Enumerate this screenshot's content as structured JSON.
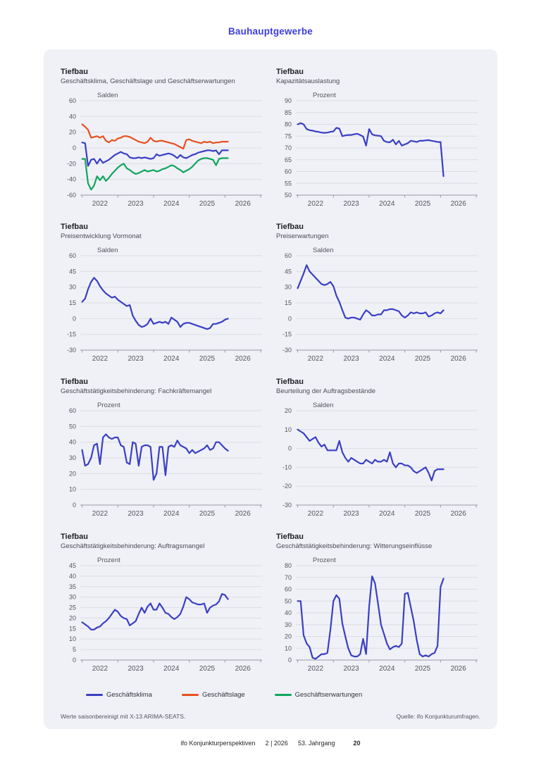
{
  "page": {
    "title": "Bauhauptgewerbe"
  },
  "styles": {
    "accent": "#3d3ddb",
    "card_bg": "#f0f1f7",
    "grid": "#dcdde3",
    "axis": "#9a9aa3",
    "tick_text": "#55555c",
    "line_blue": "#3b3fc4",
    "line_orange": "#e8501e",
    "line_green": "#12a55e"
  },
  "legend": {
    "items": [
      {
        "label": "Geschäftsklima",
        "color": "#3b3fc4"
      },
      {
        "label": "Geschäftslage",
        "color": "#e8501e"
      },
      {
        "label": "Geschäftserwartungen",
        "color": "#12a55e"
      }
    ]
  },
  "card": {
    "footnote_left": "Werte saisonbereinigt mit X-13 ARIMA-SEATS.",
    "footnote_right": "Quelle: ifo Konjunkturumfragen."
  },
  "footer": {
    "publication": "ifo Konjunkturperspektiven",
    "issue": "2 | 2026",
    "volume": "53. Jahrgang",
    "page_number": "20"
  },
  "chart_data": [
    {
      "type": "line",
      "title": "Tiefbau",
      "subtitle": "Geschäftsklima, Geschäftslage und Geschäftserwartungen",
      "unit": "Salden",
      "ymin": -60,
      "ymax": 60,
      "ystep": 20,
      "x_tick_labels": [
        "2022",
        "2023",
        "2024",
        "2025",
        "2026"
      ],
      "series": [
        {
          "name": "Geschäftsklima",
          "color": "#3b3fc4",
          "values": [
            7,
            6,
            -23,
            -15,
            -14,
            -20,
            -14,
            -19,
            -17,
            -15,
            -12,
            -9,
            -7,
            -5,
            -7,
            -8,
            -12,
            -13,
            -13,
            -12,
            -13,
            -12,
            -13,
            -14,
            -13,
            -8,
            -10,
            -9,
            -8,
            -7,
            -8,
            -10,
            -13,
            -9,
            -12,
            -13,
            -11,
            -9,
            -8,
            -6,
            -5,
            -4,
            -3,
            -3,
            -4,
            -3,
            -8,
            -3,
            -3,
            -3
          ]
        },
        {
          "name": "Geschäftslage",
          "color": "#e8501e",
          "values": [
            30,
            27,
            23,
            13,
            14,
            15,
            13,
            15,
            9,
            7,
            10,
            9,
            12,
            13,
            15,
            15,
            14,
            12,
            10,
            8,
            7,
            6,
            8,
            13,
            9,
            8,
            9,
            9,
            8,
            7,
            6,
            5,
            3,
            1,
            -1,
            10,
            11,
            9,
            8,
            7,
            6,
            8,
            7,
            8,
            6,
            7,
            7,
            8,
            8,
            8
          ]
        },
        {
          "name": "Geschäftserwartungen",
          "color": "#12a55e",
          "values": [
            -14,
            -14,
            -45,
            -53,
            -48,
            -36,
            -41,
            -36,
            -42,
            -38,
            -33,
            -29,
            -25,
            -22,
            -20,
            -26,
            -28,
            -31,
            -33,
            -32,
            -30,
            -28,
            -30,
            -29,
            -28,
            -30,
            -29,
            -27,
            -26,
            -24,
            -22,
            -23,
            -26,
            -28,
            -31,
            -29,
            -27,
            -24,
            -20,
            -16,
            -14,
            -13,
            -13,
            -14,
            -15,
            -22,
            -14,
            -13,
            -13,
            -13
          ]
        }
      ]
    },
    {
      "type": "line",
      "title": "Tiefbau",
      "subtitle": "Kapazitätsauslastung",
      "unit": "Prozent",
      "ymin": 50,
      "ymax": 90,
      "ystep": 5,
      "x_tick_labels": [
        "2022",
        "2023",
        "2024",
        "2025",
        "2026"
      ],
      "series": [
        {
          "name": "Kapazitätsauslastung",
          "color": "#3b3fc4",
          "values": [
            80,
            80.5,
            80,
            78,
            77.5,
            77.3,
            77,
            76.8,
            76.5,
            76.4,
            76.5,
            76.8,
            77,
            78.5,
            78.2,
            75,
            75.3,
            75.5,
            75.5,
            75.8,
            76,
            75.5,
            74.8,
            71,
            78,
            75.8,
            75.3,
            75.2,
            75,
            73,
            72.5,
            72.4,
            73.5,
            71.5,
            73,
            71,
            71.5,
            72,
            73,
            72.8,
            72.5,
            73,
            73,
            73.2,
            73.3,
            73,
            72.8,
            72.5,
            72.5,
            58
          ]
        }
      ]
    },
    {
      "type": "line",
      "title": "Tiefbau",
      "subtitle": "Preisentwicklung Vormonat",
      "unit": "Salden",
      "ymin": -30,
      "ymax": 60,
      "ystep": 15,
      "x_tick_labels": [
        "2022",
        "2023",
        "2024",
        "2025",
        "2026"
      ],
      "series": [
        {
          "name": "Preisentwicklung Vormonat",
          "color": "#3b3fc4",
          "values": [
            16,
            19,
            28,
            35,
            39,
            36,
            31,
            27,
            24,
            22,
            20,
            21,
            18,
            16,
            14,
            12,
            13,
            3,
            -2,
            -6,
            -8,
            -7,
            -5,
            0,
            -5,
            -4,
            -3,
            -4,
            -3,
            -5,
            1,
            -1,
            -3,
            -8,
            -5,
            -4,
            -4,
            -5,
            -6,
            -7,
            -8,
            -9,
            -10,
            -9,
            -5,
            -5,
            -4,
            -3,
            -1,
            0
          ]
        }
      ]
    },
    {
      "type": "line",
      "title": "Tiefbau",
      "subtitle": "Preiserwartungen",
      "unit": "Salden",
      "ymin": -30,
      "ymax": 60,
      "ystep": 15,
      "x_tick_labels": [
        "2022",
        "2023",
        "2024",
        "2025",
        "2026"
      ],
      "series": [
        {
          "name": "Preiserwartungen",
          "color": "#3b3fc4",
          "values": [
            29,
            36,
            43,
            51,
            45,
            42,
            39,
            36,
            33,
            32,
            33,
            35,
            31,
            22,
            16,
            8,
            1,
            0,
            1,
            1,
            0,
            -1,
            4,
            8,
            6,
            3,
            3,
            4,
            4,
            8,
            8,
            9,
            9,
            8,
            7,
            3,
            1,
            3,
            6,
            5,
            6,
            5,
            5,
            6,
            2,
            3,
            5,
            6,
            5,
            8
          ]
        }
      ]
    },
    {
      "type": "line",
      "title": "Tiefbau",
      "subtitle": "Geschäftstätigkeitsbehinderung: Fachkräftemangel",
      "unit": "Prozent",
      "ymin": 0,
      "ymax": 60,
      "ystep": 10,
      "x_tick_labels": [
        "2022",
        "2023",
        "2024",
        "2025",
        "2026"
      ],
      "series": [
        {
          "name": "Fachkräftemangel",
          "color": "#3b3fc4",
          "values": [
            35,
            25,
            26,
            30,
            38,
            39,
            26,
            43,
            45,
            43,
            42,
            43,
            43,
            38,
            37,
            27,
            26,
            40,
            39,
            25,
            37,
            38,
            38,
            37,
            16,
            20,
            37,
            37,
            19,
            37,
            38,
            37,
            41,
            38,
            37,
            36,
            33,
            35,
            33,
            34,
            35,
            36,
            38,
            35,
            36,
            40,
            40,
            38,
            36,
            34.5
          ]
        }
      ]
    },
    {
      "type": "line",
      "title": "Tiefbau",
      "subtitle": "Beurteilung der Auftragsbestände",
      "unit": "Salden",
      "ymin": -30,
      "ymax": 20,
      "ystep": 10,
      "x_tick_labels": [
        "2022",
        "2023",
        "2024",
        "2025",
        "2026"
      ],
      "series": [
        {
          "name": "Auftragsbestände",
          "color": "#3b3fc4",
          "values": [
            10,
            9,
            8,
            6,
            4,
            5,
            6,
            3,
            1,
            2,
            -1,
            -1,
            -1,
            -1,
            4,
            -2,
            -5,
            -7,
            -5,
            -6,
            -7,
            -8,
            -8,
            -6,
            -7,
            -8,
            -6,
            -7,
            -7,
            -6,
            -7,
            -2,
            -8,
            -10,
            -8,
            -8,
            -9,
            -9,
            -10,
            -12,
            -13,
            -12,
            -11,
            -10,
            -13,
            -17,
            -12,
            -11,
            -11,
            -11
          ]
        }
      ]
    },
    {
      "type": "line",
      "title": "Tiefbau",
      "subtitle": "Geschäftstätigkeitsbehinderung: Auftragsmangel",
      "unit": "Prozent",
      "ymin": 0,
      "ymax": 45,
      "ystep": 5,
      "x_tick_labels": [
        "2022",
        "2023",
        "2024",
        "2025",
        "2026"
      ],
      "series": [
        {
          "name": "Auftragsmangel",
          "color": "#3b3fc4",
          "values": [
            18,
            17,
            16,
            14.5,
            14.5,
            15.5,
            16,
            17.5,
            18.5,
            20,
            22,
            24,
            23,
            21,
            20,
            19.5,
            16.5,
            17.5,
            18.5,
            22,
            25,
            22.5,
            25.5,
            27,
            24,
            24,
            27,
            25,
            22.5,
            22,
            20.5,
            19.5,
            20.5,
            22,
            25.5,
            30,
            29,
            27.5,
            27,
            26.5,
            26.5,
            27,
            22.5,
            25,
            26,
            26.5,
            28,
            31.5,
            31,
            29
          ]
        }
      ]
    },
    {
      "type": "line",
      "title": "Tiefbau",
      "subtitle": "Geschäftstätigkeitsbehinderung: Witterungseinflüsse",
      "unit": "Prozent",
      "ymin": 0,
      "ymax": 80,
      "ystep": 10,
      "x_tick_labels": [
        "2022",
        "2023",
        "2024",
        "2025",
        "2026"
      ],
      "series": [
        {
          "name": "Witterungseinflüsse",
          "color": "#3b3fc4",
          "values": [
            50,
            50,
            21,
            14,
            11,
            2,
            1,
            3,
            5,
            5,
            6,
            26,
            50,
            55,
            52,
            31,
            20,
            10,
            4,
            3,
            3,
            5,
            18,
            5,
            45,
            71,
            65,
            48,
            30,
            22,
            14,
            9,
            11,
            12,
            11,
            14,
            56,
            57,
            45,
            33,
            17,
            5,
            3,
            4,
            3,
            5,
            6,
            12,
            62,
            69
          ]
        }
      ]
    }
  ]
}
